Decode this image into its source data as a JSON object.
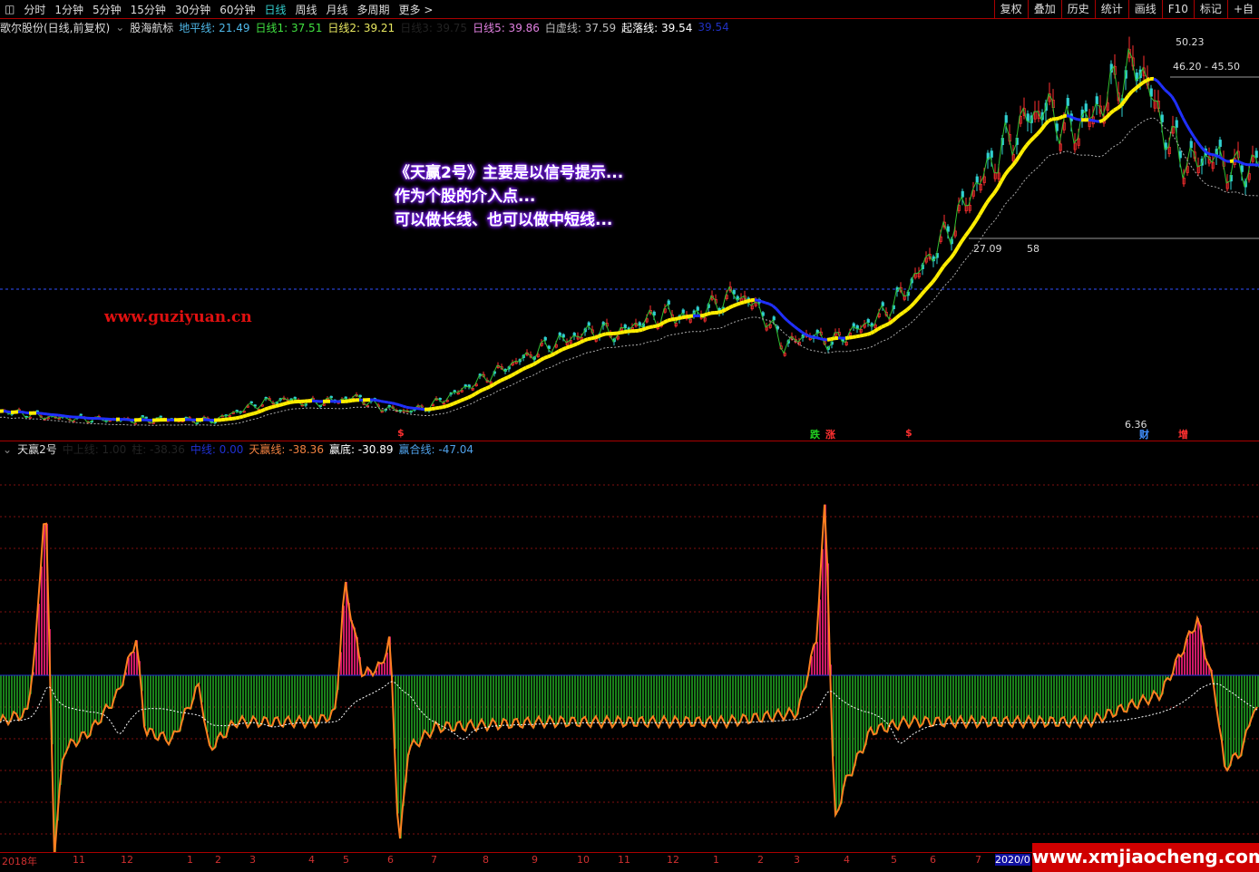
{
  "toolbar": {
    "periods": [
      "分时",
      "1分钟",
      "5分钟",
      "15分钟",
      "30分钟",
      "60分钟",
      "日线",
      "周线",
      "月线",
      "多周期",
      "更多 >"
    ],
    "active": "日线",
    "right": [
      "复权",
      "叠加",
      "历史",
      "统计",
      "画线",
      "F10",
      "标记",
      "+自"
    ]
  },
  "main_legend": {
    "stock": "歌尔股份(日线,前复权)",
    "indicator": "股海航标",
    "items": [
      {
        "label": "地平线: 21.49",
        "color": "#4fb8e8"
      },
      {
        "label": "日线1: 37.51",
        "color": "#40e040"
      },
      {
        "label": "日线2: 39.21",
        "color": "#e8e860"
      },
      {
        "label": "日线3: 39.75",
        "color": "#222222"
      },
      {
        "label": "日线5: 39.86",
        "color": "#e080e0"
      },
      {
        "label": "白虚线: 37.59",
        "color": "#bbbbbb"
      },
      {
        "label": "起落线: 39.54",
        "color": "#ffffff"
      },
      {
        "label": "39.54",
        "color": "#2030c0"
      }
    ]
  },
  "annotation": [
    "《天赢2号》主要是以信号提示...",
    "作为个股的介入点...",
    "可以做长线、也可以做中短线..."
  ],
  "site_text": "www.guziyuan.cn",
  "watermark": "www.xmjiaocheng.com",
  "price_labels": {
    "high": "50.23",
    "low": "6.36",
    "range1": "46.20 - 45.50",
    "range2a": "27.09",
    "range2b": "58"
  },
  "signals": [
    {
      "text": "跌",
      "color": "#20d020"
    },
    {
      "text": "涨",
      "color": "#ff3030"
    },
    {
      "text": "$",
      "color": "#ff3030"
    },
    {
      "text": "$",
      "color": "#ff3030"
    },
    {
      "text": "财",
      "color": "#4090ff"
    },
    {
      "text": "增",
      "color": "#ff3030"
    }
  ],
  "sub_legend": {
    "name": "天赢2号",
    "items": [
      {
        "label": "中上线: 1.00",
        "color": "#222222"
      },
      {
        "label": "柱: -38.36",
        "color": "#222222"
      },
      {
        "label": "中线: 0.00",
        "color": "#2030d0"
      },
      {
        "label": "天赢线: -38.36",
        "color": "#f08040"
      },
      {
        "label": "赢底: -30.89",
        "color": "#ffffff"
      },
      {
        "label": "赢合线: -47.04",
        "color": "#4fa0e8"
      }
    ]
  },
  "x_axis": [
    "2018年",
    "11",
    "12",
    "1",
    "2",
    "3",
    "4",
    "5",
    "6",
    "7",
    "8",
    "9",
    "10",
    "11",
    "12",
    "1",
    "2",
    "3",
    "4",
    "5",
    "6",
    "7",
    "2020/0"
  ],
  "colors": {
    "up_ma": "#ffee00",
    "down_ma": "#2030ff",
    "bar_pos": "#ff2080",
    "bar_neg": "#20a020",
    "line": "#ff8020"
  },
  "chart_data": [
    {
      "type": "line",
      "title": "歌尔股份",
      "ylim": [
        4,
        52
      ],
      "series": [
        {
          "name": "close",
          "values": [
            7.5,
            7.2,
            6.8,
            6.6,
            6.5,
            6.4,
            6.4,
            6.5,
            6.4,
            6.36,
            7.5,
            8.5,
            9.0,
            8.5,
            8.8,
            9.2,
            8.0,
            7.5,
            8.0,
            9.5,
            11,
            12.5,
            14,
            15.5,
            16.5,
            17.5,
            17,
            18.5,
            19.5,
            19,
            20.5,
            22,
            20,
            15.5,
            17,
            16,
            17.5,
            19,
            22,
            26,
            30,
            35,
            39,
            43,
            45,
            42,
            44,
            48,
            50.23,
            42,
            38,
            39,
            37,
            38
          ]
        }
      ]
    },
    {
      "type": "bar",
      "title": "天赢2号",
      "ylim": [
        -97,
        100
      ],
      "keypoints": [
        [
          0,
          -25
        ],
        [
          3,
          -20
        ],
        [
          4,
          20
        ],
        [
          5,
          100
        ],
        [
          6,
          -95
        ],
        [
          7,
          -40
        ],
        [
          10,
          -30
        ],
        [
          13,
          -10
        ],
        [
          15,
          20
        ],
        [
          16,
          -30
        ],
        [
          19,
          -35
        ],
        [
          22,
          -5
        ],
        [
          23,
          -40
        ],
        [
          26,
          -25
        ],
        [
          35,
          -25
        ],
        [
          37,
          -20
        ],
        [
          38,
          50
        ],
        [
          40,
          0
        ],
        [
          42,
          5
        ],
        [
          43,
          20
        ],
        [
          44,
          -95
        ],
        [
          45,
          -40
        ],
        [
          48,
          -28
        ],
        [
          60,
          -25
        ],
        [
          80,
          -25
        ],
        [
          88,
          -20
        ],
        [
          90,
          20
        ],
        [
          91,
          97
        ],
        [
          92,
          -80
        ],
        [
          93,
          -60
        ],
        [
          96,
          -30
        ],
        [
          100,
          -25
        ],
        [
          120,
          -25
        ],
        [
          128,
          -10
        ],
        [
          132,
          30
        ],
        [
          134,
          -10
        ],
        [
          135,
          -50
        ],
        [
          137,
          -40
        ],
        [
          138,
          -20
        ]
      ]
    }
  ]
}
